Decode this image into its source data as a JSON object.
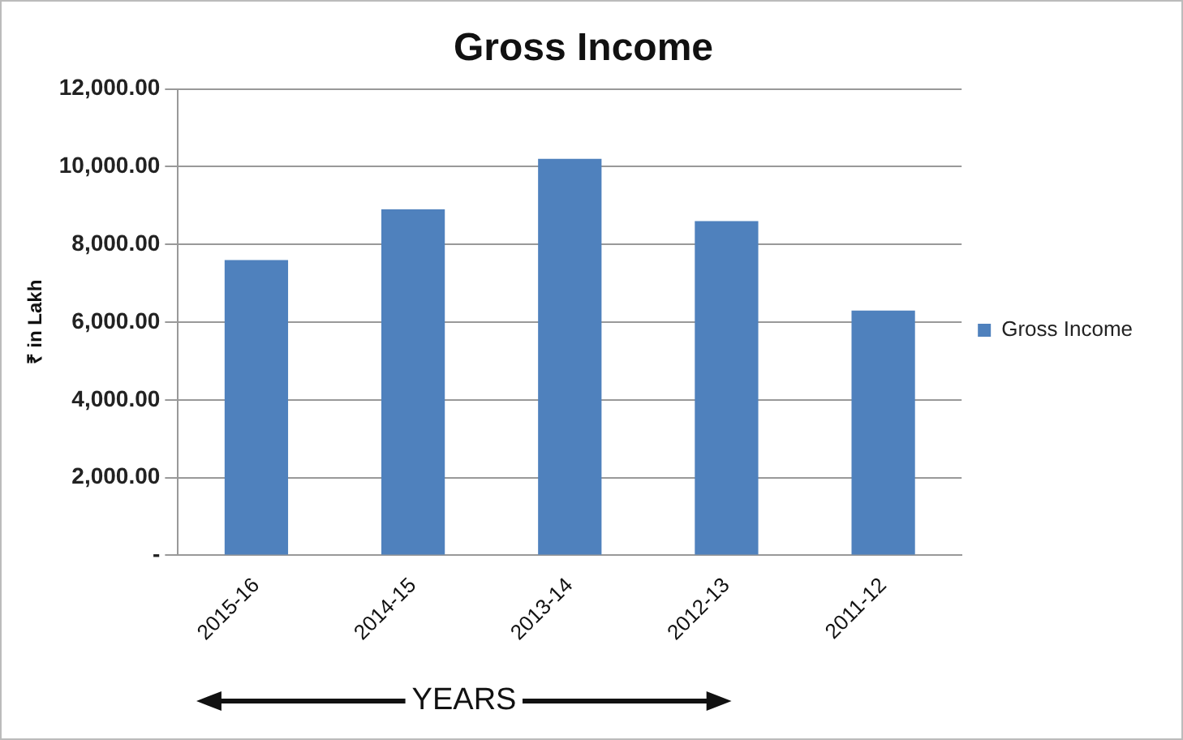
{
  "chart_data": {
    "type": "bar",
    "title": "Gross Income",
    "xlabel": "YEARS",
    "ylabel": "₹ in Lakh",
    "categories": [
      "2015-16",
      "2014-15",
      "2013-14",
      "2012-13",
      "2011-12"
    ],
    "series": [
      {
        "name": "Gross Income",
        "color": "#4f81bd",
        "values": [
          7600,
          8900,
          10200,
          8600,
          6300
        ]
      }
    ],
    "ylim": [
      0,
      12000
    ],
    "yticks": [
      {
        "value": 0,
        "label": "-"
      },
      {
        "value": 2000,
        "label": "2,000.00"
      },
      {
        "value": 4000,
        "label": "4,000.00"
      },
      {
        "value": 6000,
        "label": "6,000.00"
      },
      {
        "value": 8000,
        "label": "8,000.00"
      },
      {
        "value": 10000,
        "label": "10,000.00"
      },
      {
        "value": 12000,
        "label": "12,000.00"
      }
    ],
    "grid": "y",
    "legend": "right"
  }
}
